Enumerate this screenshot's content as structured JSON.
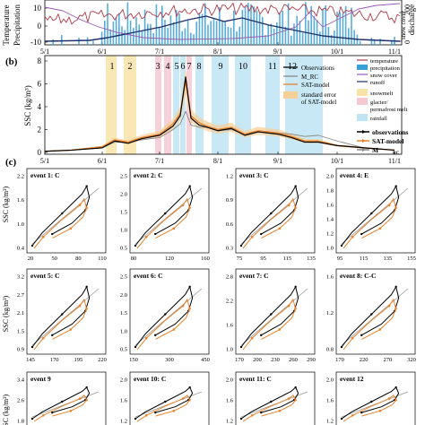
{
  "panel_a": {
    "ylabel_left": "Temperature",
    "ylabel_left2": "Precipitation",
    "ylabel_right": "discharge",
    "ylabel_right2": "snow cover",
    "y_ticks_left": [
      "10",
      "0",
      "-10"
    ],
    "y_ticks_right": [
      "0",
      "200"
    ],
    "x_ticks": [
      "5/1",
      "6/1",
      "7/1",
      "8/1",
      "9/1",
      "10/1",
      "11/1"
    ],
    "colors": {
      "temperature": "#b03a48",
      "precipitation": "#3aa0d8",
      "snow": "#9b59b6",
      "discharge": "#1f2f6b"
    }
  },
  "panel_b": {
    "label": "(b)",
    "ylabel": "SSC (kg/m³)",
    "y_ticks": [
      "8",
      "6",
      "4",
      "2",
      "0"
    ],
    "x_ticks": [
      "5/1",
      "6/1",
      "7/1",
      "8/1",
      "9/1",
      "10/1",
      "11/1"
    ],
    "event_labels": [
      "1",
      "2",
      "3",
      "4",
      "5",
      "6",
      "7",
      "8",
      "9",
      "10",
      "11",
      "12"
    ],
    "legend": {
      "observations": "Observations",
      "mrc": "M_RC",
      "sat": "SAT-model",
      "se": "standard error",
      "se2": "of SAT-model",
      "temperature": "temperature",
      "precipitation": "precipitation",
      "snow": "snow cover",
      "runoff": "runoff",
      "snowmelt": "snowmelt",
      "glacier": "glacier/",
      "glacier2": "permafrost melt",
      "rainfall": "rainfall"
    },
    "colors": {
      "obs": "#000000",
      "mrc": "#888888",
      "sat": "#e8822a",
      "se": "#f6cf96",
      "snowmelt": "#f8e3a8",
      "glacier": "#f6c9d2",
      "rainfall": "#bfe4f3"
    }
  },
  "panel_c": {
    "label": "(c)",
    "ylabel": "SSC (kg/m³)",
    "legend": {
      "obs": "observations",
      "sat": "SAT-model",
      "mrc": "M"
    },
    "events": [
      {
        "title": "event 1: C",
        "y_ticks": [
          "2.2",
          "1.6",
          "1.0",
          "0.4"
        ],
        "x_ticks": [
          "20",
          "50",
          "80",
          "110"
        ]
      },
      {
        "title": "event 2: C",
        "y_ticks": [
          "2.5",
          "2.0",
          "1.5",
          "1.0",
          "0.5"
        ],
        "x_ticks": [
          "80",
          "120",
          "160"
        ]
      },
      {
        "title": "event 3: C",
        "y_ticks": [
          "1.2",
          "0.9",
          "0.6",
          "0.3"
        ],
        "x_ticks": [
          "75",
          "95",
          "115",
          "135"
        ]
      },
      {
        "title": "event 4: E",
        "y_ticks": [
          "2.0",
          "1.8",
          "1.6",
          "1.4",
          "1.2",
          "1.0"
        ],
        "x_ticks": [
          "95",
          "115",
          "135",
          "155"
        ]
      },
      {
        "title": "event 5: C",
        "y_ticks": [
          "3.2",
          "2.7",
          "2.1",
          "1.5",
          "0.9"
        ],
        "x_ticks": [
          "145",
          "170",
          "195",
          "220"
        ]
      },
      {
        "title": "event 6: C",
        "y_ticks": [
          "2.5",
          "2.0",
          "1.5",
          "1.0",
          "0.5"
        ],
        "x_ticks": [
          "150",
          "300",
          "450"
        ]
      },
      {
        "title": "event 7: C",
        "y_ticks": [
          "2.8",
          "2.2",
          "1.6",
          "1.0"
        ],
        "x_ticks": [
          "170",
          "200",
          "230",
          "260",
          "290"
        ]
      },
      {
        "title": "event 8: C-C",
        "y_ticks": [
          "1.6",
          "1.2",
          "0.8"
        ],
        "x_ticks": [
          "170",
          "220",
          "270",
          "320"
        ]
      },
      {
        "title": "event 9",
        "y_ticks": [
          "3.4",
          "2.6",
          "1.8"
        ],
        "x_ticks": []
      },
      {
        "title": "event 10: C",
        "y_ticks": [
          "2.0",
          "1.6",
          "1.2"
        ],
        "x_ticks": []
      },
      {
        "title": "event 11: C",
        "y_ticks": [
          "2.0",
          "1.6",
          "1.2"
        ],
        "x_ticks": []
      },
      {
        "title": "event 12",
        "y_ticks": [
          "2.0",
          "1.6",
          "1.2"
        ],
        "x_ticks": []
      }
    ]
  },
  "chart_data": [
    {
      "type": "line",
      "panel": "b",
      "ylabel": "SSC (kg/m³)",
      "ylim": [
        0,
        8
      ],
      "x": [
        "5/1",
        "5/15",
        "6/1",
        "6/8",
        "6/15",
        "6/22",
        "7/1",
        "7/8",
        "7/12",
        "7/15",
        "7/18",
        "7/22",
        "7/26",
        "8/1",
        "8/8",
        "8/15",
        "8/22",
        "9/1",
        "9/8",
        "9/15",
        "9/22",
        "10/1",
        "10/15",
        "11/1"
      ],
      "series": [
        {
          "name": "Observations",
          "values": [
            0.1,
            0.2,
            0.4,
            1.0,
            0.8,
            1.2,
            1.5,
            2.3,
            3.2,
            6.6,
            3.0,
            2.4,
            2.2,
            1.9,
            2.1,
            1.5,
            1.8,
            1.6,
            1.3,
            0.9,
            0.9,
            0.6,
            0.4,
            0.2
          ]
        },
        {
          "name": "SAT-model",
          "values": [
            0.1,
            0.2,
            0.5,
            1.1,
            0.9,
            1.3,
            1.6,
            2.5,
            3.4,
            6.2,
            3.2,
            2.6,
            2.3,
            2.0,
            2.2,
            1.6,
            1.9,
            1.7,
            1.4,
            1.0,
            1.0,
            0.6,
            0.4,
            0.2
          ]
        },
        {
          "name": "M_RC",
          "values": [
            0.1,
            0.2,
            0.4,
            0.9,
            0.9,
            1.1,
            1.3,
            2.0,
            2.5,
            3.6,
            2.4,
            2.2,
            2.2,
            1.9,
            2.0,
            1.6,
            1.8,
            1.7,
            1.6,
            1.4,
            1.5,
            1.0,
            0.4,
            0.2
          ]
        }
      ]
    }
  ]
}
